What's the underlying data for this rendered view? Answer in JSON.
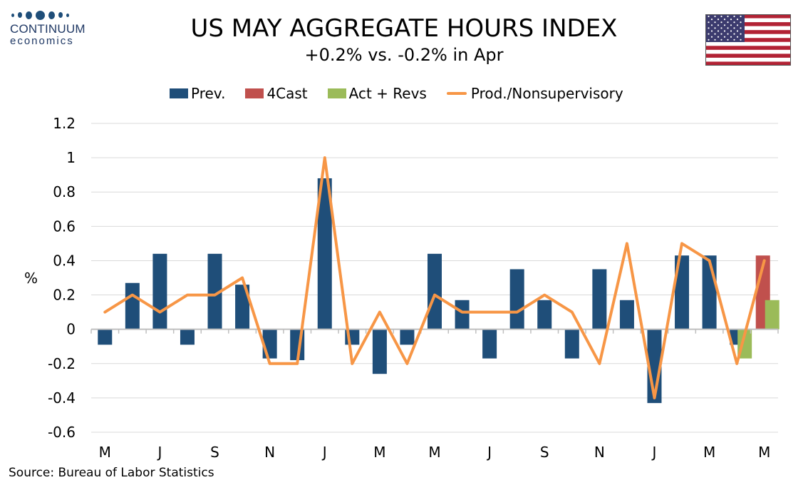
{
  "logo": {
    "name": "CONTINUUM",
    "sub": "economics"
  },
  "header": {
    "title": "US MAY AGGREGATE HOURS INDEX",
    "subtitle": "+0.2% vs. -0.2% in Apr"
  },
  "source": "Source: Bureau of Labor Statistics",
  "colors": {
    "prev": "#1f4e79",
    "fourcast": "#c0504d",
    "actrevs": "#9bbb59",
    "line": "#f79646",
    "grid": "#d9d9d9"
  },
  "chart_data": {
    "type": "bar",
    "title": "US MAY AGGREGATE HOURS INDEX",
    "subtitle": "+0.2% vs. -0.2% in Apr",
    "ylabel": "%",
    "ylim": [
      -0.6,
      1.2
    ],
    "yticks": [
      "1.2",
      "1",
      "0.8",
      "0.6",
      "0.4",
      "0.2",
      "0",
      "-0.2",
      "-0.4",
      "-0.6"
    ],
    "ytick_values": [
      1.2,
      1,
      0.8,
      0.6,
      0.4,
      0.2,
      0,
      -0.2,
      -0.4,
      -0.6
    ],
    "grid": true,
    "legend_position": "top",
    "x_tick_labels": [
      "M",
      "J",
      "S",
      "N",
      "J",
      "M",
      "M",
      "J",
      "S",
      "N",
      "J",
      "M",
      "M"
    ],
    "series": [
      {
        "name": "Prev.",
        "kind": "bar",
        "values": [
          -0.09,
          0.27,
          0.44,
          -0.09,
          0.44,
          0.26,
          -0.17,
          -0.18,
          0.88,
          -0.09,
          -0.26,
          -0.09,
          0.44,
          0.17,
          -0.17,
          0.35,
          0.17,
          -0.17,
          0.35,
          0.17,
          -0.43,
          0.43,
          0.43,
          -0.09,
          0
        ]
      },
      {
        "name": "4Cast",
        "kind": "bar",
        "values": [
          0,
          0,
          0,
          0,
          0,
          0,
          0,
          0,
          0,
          0,
          0,
          0,
          0,
          0,
          0,
          0,
          0,
          0,
          0,
          0,
          0,
          0,
          0,
          0,
          0.43
        ]
      },
      {
        "name": "Act + Revs",
        "kind": "bar",
        "values": [
          0,
          0,
          0,
          0,
          0,
          0,
          0,
          0,
          0,
          0,
          0,
          0,
          0,
          0,
          0,
          0,
          0,
          0,
          0,
          0,
          0,
          0,
          0,
          -0.17,
          0.17
        ]
      },
      {
        "name": "Prod./Nonsupervisory",
        "kind": "line",
        "values": [
          0.1,
          0.2,
          0.1,
          0.2,
          0.2,
          0.3,
          -0.2,
          -0.2,
          1.0,
          -0.2,
          0.1,
          -0.2,
          0.2,
          0.1,
          0.1,
          0.1,
          0.2,
          0.1,
          -0.2,
          0.5,
          -0.4,
          0.5,
          0.4,
          -0.2,
          0.4
        ]
      }
    ]
  }
}
